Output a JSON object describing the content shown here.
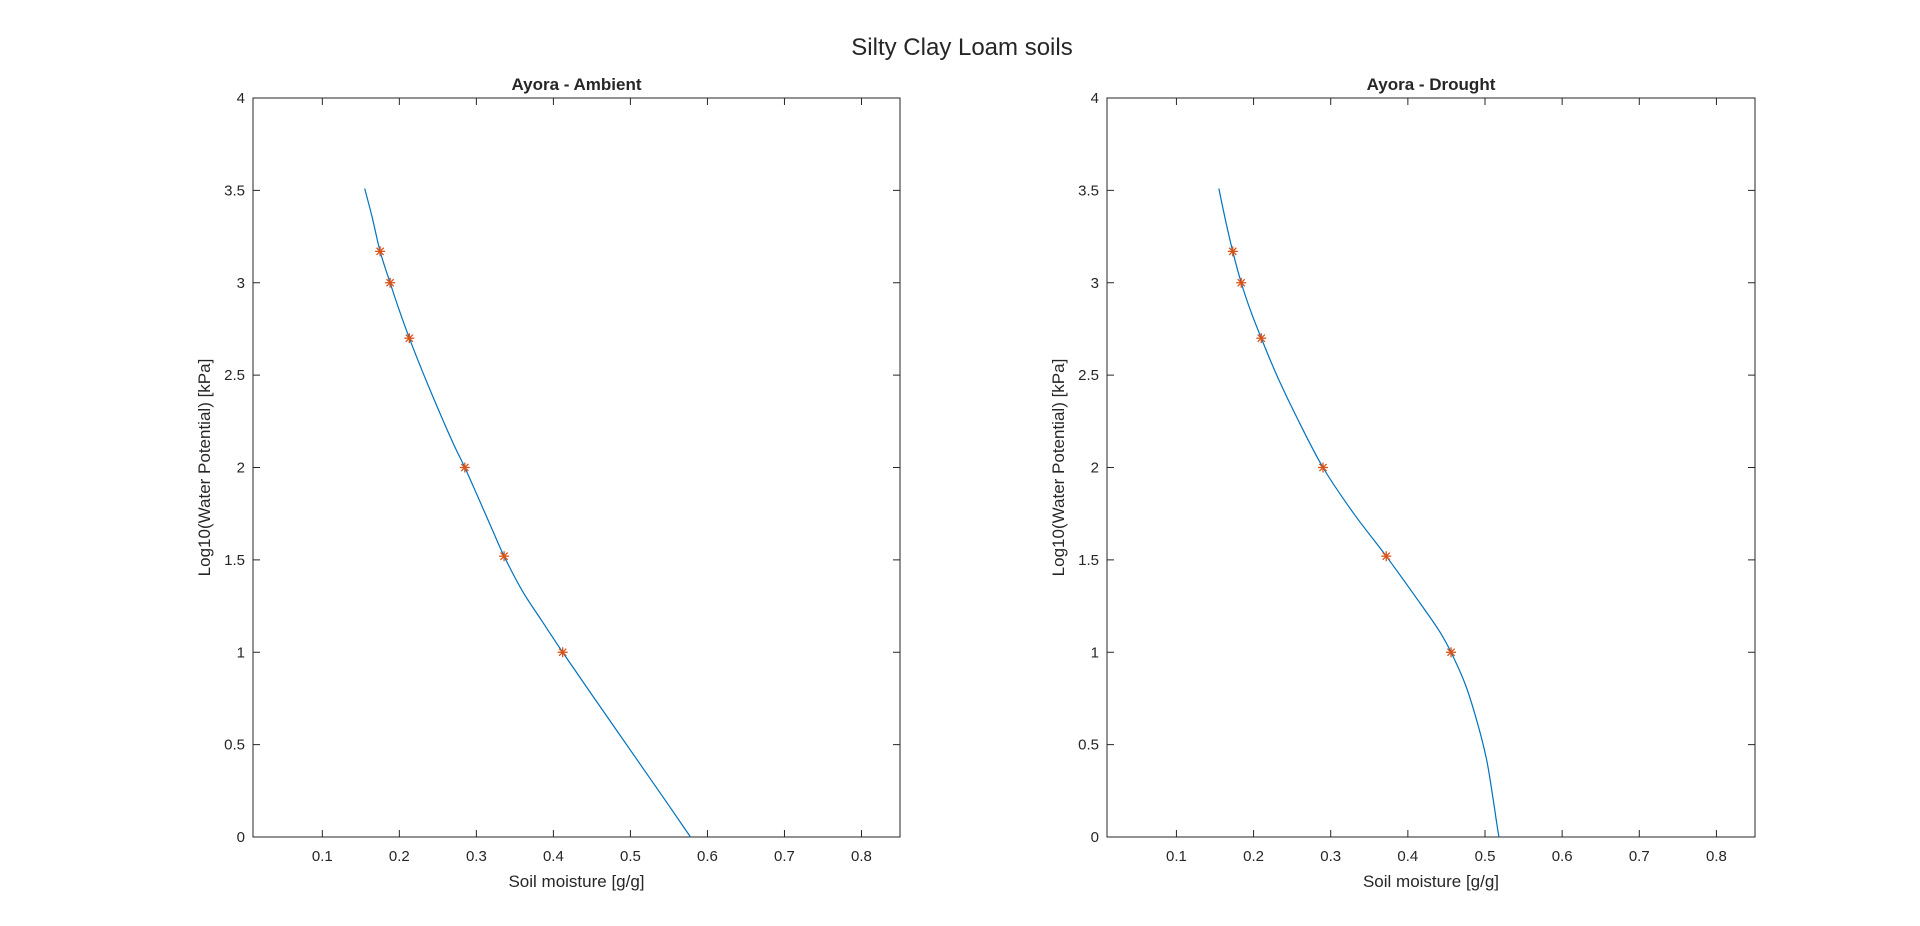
{
  "figure_title": "Silty Clay Loam soils",
  "chart_data": [
    {
      "type": "line",
      "title": "Ayora - Ambient",
      "xlabel": "Soil moisture [g/g]",
      "ylabel": "Log10(Water Potential) [kPa]",
      "xlim": [
        0.01,
        0.85
      ],
      "ylim": [
        0,
        4
      ],
      "xticks": [
        0.1,
        0.2,
        0.3,
        0.4,
        0.5,
        0.6,
        0.7,
        0.8
      ],
      "yticks": [
        0,
        0.5,
        1,
        1.5,
        2,
        2.5,
        3,
        3.5,
        4
      ],
      "xtick_labels": [
        "0.1",
        "0.2",
        "0.3",
        "0.4",
        "0.5",
        "0.6",
        "0.7",
        "0.8"
      ],
      "ytick_labels": [
        "0",
        "0.5",
        "1",
        "1.5",
        "2",
        "2.5",
        "3",
        "3.5",
        "4"
      ],
      "grid": false,
      "series": [
        {
          "kind": "line",
          "color": "#0072BD",
          "x": [
            0.155,
            0.165,
            0.175,
            0.188,
            0.2,
            0.213,
            0.23,
            0.25,
            0.27,
            0.285,
            0.3,
            0.32,
            0.336,
            0.36,
            0.385,
            0.412,
            0.45,
            0.5,
            0.55,
            0.578
          ],
          "y": [
            3.51,
            3.35,
            3.17,
            3.0,
            2.85,
            2.7,
            2.52,
            2.32,
            2.13,
            2.0,
            1.86,
            1.67,
            1.52,
            1.33,
            1.17,
            1.0,
            0.77,
            0.47,
            0.17,
            0.0
          ]
        },
        {
          "kind": "scatter",
          "marker": "*",
          "color": "#D95319",
          "x": [
            0.175,
            0.188,
            0.213,
            0.285,
            0.336,
            0.412
          ],
          "y": [
            3.17,
            3.0,
            2.7,
            2.0,
            1.52,
            1.0
          ]
        }
      ]
    },
    {
      "type": "line",
      "title": "Ayora - Drought",
      "xlabel": "Soil moisture [g/g]",
      "ylabel": "Log10(Water Potential) [kPa]",
      "xlim": [
        0.01,
        0.85
      ],
      "ylim": [
        0,
        4
      ],
      "xticks": [
        0.1,
        0.2,
        0.3,
        0.4,
        0.5,
        0.6,
        0.7,
        0.8
      ],
      "yticks": [
        0,
        0.5,
        1,
        1.5,
        2,
        2.5,
        3,
        3.5,
        4
      ],
      "xtick_labels": [
        "0.1",
        "0.2",
        "0.3",
        "0.4",
        "0.5",
        "0.6",
        "0.7",
        "0.8"
      ],
      "ytick_labels": [
        "0",
        "0.5",
        "1",
        "1.5",
        "2",
        "2.5",
        "3",
        "3.5",
        "4"
      ],
      "grid": false,
      "series": [
        {
          "kind": "line",
          "color": "#0072BD",
          "x": [
            0.155,
            0.163,
            0.173,
            0.184,
            0.196,
            0.21,
            0.23,
            0.255,
            0.29,
            0.33,
            0.372,
            0.41,
            0.44,
            0.456,
            0.475,
            0.49,
            0.502,
            0.51,
            0.515,
            0.518
          ],
          "y": [
            3.51,
            3.35,
            3.17,
            3.0,
            2.85,
            2.7,
            2.5,
            2.28,
            2.0,
            1.75,
            1.52,
            1.3,
            1.12,
            1.0,
            0.82,
            0.62,
            0.42,
            0.22,
            0.08,
            0.0
          ]
        },
        {
          "kind": "scatter",
          "marker": "*",
          "color": "#D95319",
          "x": [
            0.173,
            0.184,
            0.21,
            0.29,
            0.372,
            0.456
          ],
          "y": [
            3.17,
            3.0,
            2.7,
            2.0,
            1.52,
            1.0
          ]
        }
      ]
    }
  ]
}
